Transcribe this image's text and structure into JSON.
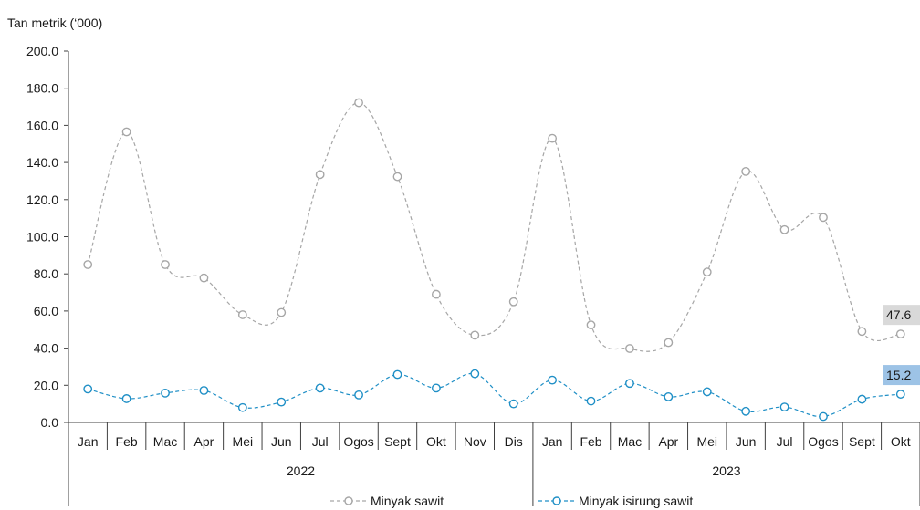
{
  "chart_data": {
    "type": "line",
    "unit_label": "Tan metrik (‘000)",
    "ylim": [
      0,
      200
    ],
    "yticks": [
      "0.0",
      "20.0",
      "40.0",
      "60.0",
      "80.0",
      "100.0",
      "120.0",
      "140.0",
      "160.0",
      "180.0",
      "200.0"
    ],
    "categories": [
      "Jan",
      "Feb",
      "Mac",
      "Apr",
      "Mei",
      "Jun",
      "Jul",
      "Ogos",
      "Sept",
      "Okt",
      "Nov",
      "Dis",
      "Jan",
      "Feb",
      "Mac",
      "Apr",
      "Mei",
      "Jun",
      "Jul",
      "Ogos",
      "Sept",
      "Okt"
    ],
    "years": [
      {
        "label": "2022",
        "from": 0,
        "to": 11
      },
      {
        "label": "2023",
        "from": 12,
        "to": 21
      }
    ],
    "grid": false,
    "legend_position": "bottom",
    "series": [
      {
        "name": "Minyak sawit",
        "color": "#a6a6a6",
        "values": [
          85.0,
          156.5,
          85.0,
          77.8,
          58.0,
          59.2,
          133.5,
          172.2,
          132.4,
          69.0,
          47.0,
          65.0,
          153.0,
          52.5,
          39.8,
          43.0,
          81.0,
          135.2,
          103.8,
          110.4,
          49.0,
          47.6
        ],
        "end_label": "47.6",
        "end_label_bg": "#d9d9d9"
      },
      {
        "name": "Minyak isirung sawit",
        "color": "#1f8fc6",
        "values": [
          18.0,
          12.8,
          15.8,
          17.2,
          8.0,
          11.0,
          18.5,
          14.8,
          25.8,
          18.5,
          26.2,
          10.0,
          22.8,
          11.5,
          21.0,
          13.8,
          16.5,
          6.0,
          8.3,
          3.2,
          12.5,
          15.2
        ],
        "end_label": "15.2",
        "end_label_bg": "#9dc3e6"
      }
    ]
  }
}
